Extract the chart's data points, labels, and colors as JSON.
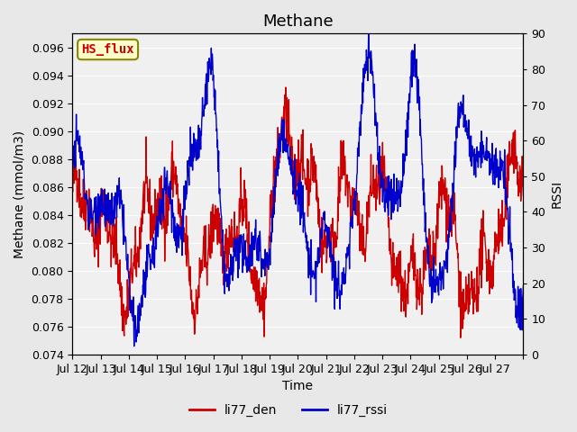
{
  "title": "Methane",
  "xlabel": "Time",
  "ylabel_left": "Methane (mmol/m3)",
  "ylabel_right": "RSSI",
  "ylim_left": [
    0.074,
    0.097
  ],
  "ylim_right": [
    0,
    90
  ],
  "yticks_left": [
    0.074,
    0.076,
    0.078,
    0.08,
    0.082,
    0.084,
    0.086,
    0.088,
    0.09,
    0.092,
    0.094,
    0.096
  ],
  "yticks_right": [
    0,
    10,
    20,
    30,
    40,
    50,
    60,
    70,
    80,
    90
  ],
  "xtick_labels": [
    "Jul 12",
    "Jul 13",
    "Jul 14",
    "Jul 15",
    "Jul 16",
    "Jul 17",
    "Jul 18",
    "Jul 19",
    "Jul 20",
    "Jul 21",
    "Jul 22",
    "Jul 23",
    "Jul 24",
    "Jul 25",
    "Jul 26",
    "Jul 27"
  ],
  "color_den": "#cc0000",
  "color_rssi": "#0000cc",
  "legend_label_den": "li77_den",
  "legend_label_rssi": "li77_rssi",
  "box_label": "HS_flux",
  "box_facecolor": "#ffffcc",
  "box_edgecolor": "#888800",
  "box_textcolor": "#cc0000",
  "background_color": "#e8e8e8",
  "plot_bg_color": "#f0f0f0",
  "grid_color": "#ffffff",
  "title_fontsize": 13,
  "axis_label_fontsize": 10,
  "tick_fontsize": 9,
  "legend_fontsize": 10,
  "seed": 42
}
